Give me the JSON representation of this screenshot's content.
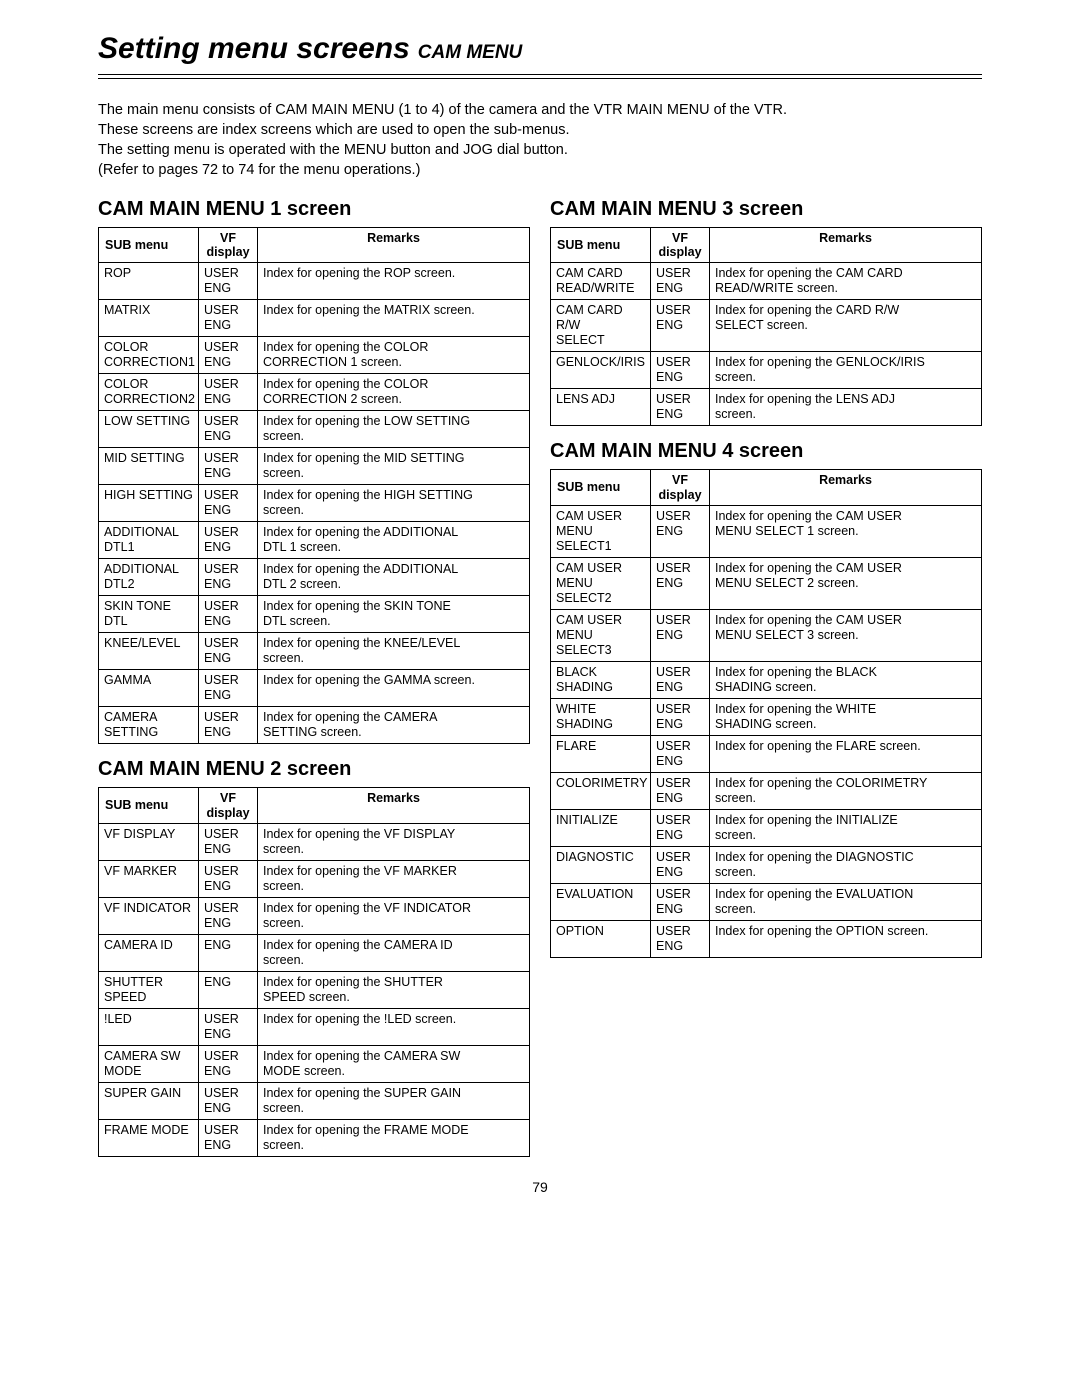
{
  "page_number": "79",
  "title_main": "Setting menu screens",
  "title_sub": "CAM MENU",
  "intro_lines": [
    "The main menu consists of CAM MAIN MENU (1 to 4) of the camera and the VTR MAIN MENU of the VTR.",
    "These screens are index screens which are used to open the sub-menus.",
    "The setting menu is operated with the MENU button and JOG dial button.",
    "(Refer to pages 72 to 74 for the menu operations.)"
  ],
  "table_headers": {
    "sub": "SUB menu",
    "vf_l1": "VF",
    "vf_l2": "display",
    "remarks": "Remarks"
  },
  "sections": {
    "menu1": {
      "heading": "CAM MAIN MENU 1 screen",
      "rows": [
        {
          "sub": [
            "ROP"
          ],
          "vf": [
            "USER",
            "ENG"
          ],
          "rem": [
            "Index for opening the ROP screen."
          ]
        },
        {
          "sub": [
            "MATRIX"
          ],
          "vf": [
            "USER",
            "ENG"
          ],
          "rem": [
            "Index for opening the MATRIX screen."
          ]
        },
        {
          "sub": [
            "COLOR",
            "CORRECTION1"
          ],
          "vf": [
            "USER",
            "ENG"
          ],
          "rem": [
            "Index for opening the COLOR",
            "CORRECTION 1 screen."
          ]
        },
        {
          "sub": [
            "COLOR",
            "CORRECTION2"
          ],
          "vf": [
            "USER",
            "ENG"
          ],
          "rem": [
            "Index for opening the COLOR",
            "CORRECTION 2 screen."
          ]
        },
        {
          "sub": [
            "LOW SETTING"
          ],
          "vf": [
            "USER",
            "ENG"
          ],
          "rem": [
            "Index for opening the LOW SETTING",
            "screen."
          ]
        },
        {
          "sub": [
            "MID SETTING"
          ],
          "vf": [
            "USER",
            "ENG"
          ],
          "rem": [
            "Index for opening the MID SETTING",
            "screen."
          ]
        },
        {
          "sub": [
            "HIGH SETTING"
          ],
          "vf": [
            "USER",
            "ENG"
          ],
          "rem": [
            "Index for opening the HIGH SETTING",
            "screen."
          ]
        },
        {
          "sub": [
            "ADDITIONAL",
            "DTL1"
          ],
          "vf": [
            "USER",
            "ENG"
          ],
          "rem": [
            "Index for opening the ADDITIONAL",
            "DTL 1 screen."
          ]
        },
        {
          "sub": [
            "ADDITIONAL",
            "DTL2"
          ],
          "vf": [
            "USER",
            "ENG"
          ],
          "rem": [
            "Index for opening the ADDITIONAL",
            "DTL 2 screen."
          ]
        },
        {
          "sub": [
            "SKIN TONE DTL"
          ],
          "vf": [
            "USER",
            "ENG"
          ],
          "rem": [
            "Index for opening the SKIN TONE",
            "DTL screen."
          ]
        },
        {
          "sub": [
            "KNEE/LEVEL"
          ],
          "vf": [
            "USER",
            "ENG"
          ],
          "rem": [
            "Index for opening the KNEE/LEVEL",
            "screen."
          ]
        },
        {
          "sub": [
            "GAMMA"
          ],
          "vf": [
            "USER",
            "ENG"
          ],
          "rem": [
            "Index for opening the GAMMA screen."
          ]
        },
        {
          "sub": [
            "CAMERA",
            "SETTING"
          ],
          "vf": [
            "USER",
            "ENG"
          ],
          "rem": [
            "Index for opening the CAMERA",
            "SETTING screen."
          ]
        }
      ]
    },
    "menu2": {
      "heading": "CAM MAIN MENU 2 screen",
      "rows": [
        {
          "sub": [
            "VF DISPLAY"
          ],
          "vf": [
            "USER",
            "ENG"
          ],
          "rem": [
            "Index for opening the VF DISPLAY",
            "screen."
          ]
        },
        {
          "sub": [
            "VF MARKER"
          ],
          "vf": [
            "USER",
            "ENG"
          ],
          "rem": [
            "Index for opening the VF MARKER",
            "screen."
          ]
        },
        {
          "sub": [
            "VF INDICATOR"
          ],
          "vf": [
            "USER",
            "ENG"
          ],
          "rem": [
            "Index for opening the VF INDICATOR",
            "screen."
          ]
        },
        {
          "sub": [
            "CAMERA ID"
          ],
          "vf": [
            "ENG"
          ],
          "rem": [
            "Index for opening the CAMERA ID",
            "screen."
          ]
        },
        {
          "sub": [
            "SHUTTER",
            "SPEED"
          ],
          "vf": [
            "ENG"
          ],
          "rem": [
            "Index for opening the SHUTTER",
            "SPEED screen."
          ]
        },
        {
          "sub": [
            "!LED"
          ],
          "vf": [
            "USER",
            "ENG"
          ],
          "rem": [
            "Index for opening the !LED screen."
          ]
        },
        {
          "sub": [
            "CAMERA SW",
            "MODE"
          ],
          "vf": [
            "USER",
            "ENG"
          ],
          "rem": [
            "Index for opening the CAMERA SW",
            "MODE screen."
          ]
        },
        {
          "sub": [
            "SUPER GAIN"
          ],
          "vf": [
            "USER",
            "ENG"
          ],
          "rem": [
            "Index for opening the SUPER GAIN",
            "screen."
          ]
        },
        {
          "sub": [
            "FRAME MODE"
          ],
          "vf": [
            "USER",
            "ENG"
          ],
          "rem": [
            "Index for opening the FRAME MODE",
            "screen."
          ]
        }
      ]
    },
    "menu3": {
      "heading": "CAM MAIN MENU 3 screen",
      "rows": [
        {
          "sub": [
            "CAM CARD",
            "READ/WRITE"
          ],
          "vf": [
            "USER",
            "ENG"
          ],
          "rem": [
            "Index for opening the CAM CARD",
            "READ/WRITE screen."
          ]
        },
        {
          "sub": [
            "CAM CARD R/W",
            "SELECT"
          ],
          "vf": [
            "USER",
            "ENG"
          ],
          "rem": [
            "Index for opening the CARD R/W",
            "SELECT screen."
          ]
        },
        {
          "sub": [
            "GENLOCK/IRIS"
          ],
          "vf": [
            "USER",
            "ENG"
          ],
          "rem": [
            "Index for opening the GENLOCK/IRIS",
            "screen."
          ]
        },
        {
          "sub": [
            "LENS ADJ"
          ],
          "vf": [
            "USER",
            "ENG"
          ],
          "rem": [
            "Index for opening the LENS ADJ",
            "screen."
          ]
        }
      ]
    },
    "menu4": {
      "heading": "CAM MAIN MENU 4 screen",
      "rows": [
        {
          "sub": [
            "CAM USER",
            "MENU",
            "SELECT1"
          ],
          "vf": [
            "USER",
            "ENG"
          ],
          "rem": [
            "Index for opening the CAM USER",
            "MENU SELECT 1 screen."
          ]
        },
        {
          "sub": [
            "CAM USER",
            "MENU SELECT2"
          ],
          "vf": [
            "USER",
            "ENG"
          ],
          "rem": [
            "Index for opening the CAM USER",
            "MENU SELECT 2 screen."
          ]
        },
        {
          "sub": [
            "CAM USER",
            "MENU SELECT3"
          ],
          "vf": [
            "USER",
            "ENG"
          ],
          "rem": [
            "Index for opening the CAM USER",
            "MENU SELECT 3 screen."
          ]
        },
        {
          "sub": [
            "BLACK",
            "SHADING"
          ],
          "vf": [
            "USER",
            "ENG"
          ],
          "rem": [
            "Index for opening the BLACK",
            "SHADING screen."
          ]
        },
        {
          "sub": [
            "WHITE",
            "SHADING"
          ],
          "vf": [
            "USER",
            "ENG"
          ],
          "rem": [
            "Index for opening the WHITE",
            "SHADING screen."
          ]
        },
        {
          "sub": [
            "FLARE"
          ],
          "vf": [
            "USER",
            "ENG"
          ],
          "rem": [
            "Index for opening the FLARE screen."
          ]
        },
        {
          "sub": [
            "COLORIMETRY"
          ],
          "vf": [
            "USER",
            "ENG"
          ],
          "rem": [
            "Index for opening the COLORIMETRY",
            "screen."
          ]
        },
        {
          "sub": [
            "INITIALIZE"
          ],
          "vf": [
            "USER",
            "ENG"
          ],
          "rem": [
            "Index for opening the INITIALIZE",
            "screen."
          ]
        },
        {
          "sub": [
            "DIAGNOSTIC"
          ],
          "vf": [
            "USER",
            "ENG"
          ],
          "rem": [
            "Index for opening the DIAGNOSTIC",
            "screen."
          ]
        },
        {
          "sub": [
            "EVALUATION"
          ],
          "vf": [
            "USER",
            "ENG"
          ],
          "rem": [
            "Index for opening the EVALUATION",
            "screen."
          ]
        },
        {
          "sub": [
            "OPTION"
          ],
          "vf": [
            "USER",
            "ENG"
          ],
          "rem": [
            "Index for opening the OPTION screen."
          ]
        }
      ]
    }
  }
}
